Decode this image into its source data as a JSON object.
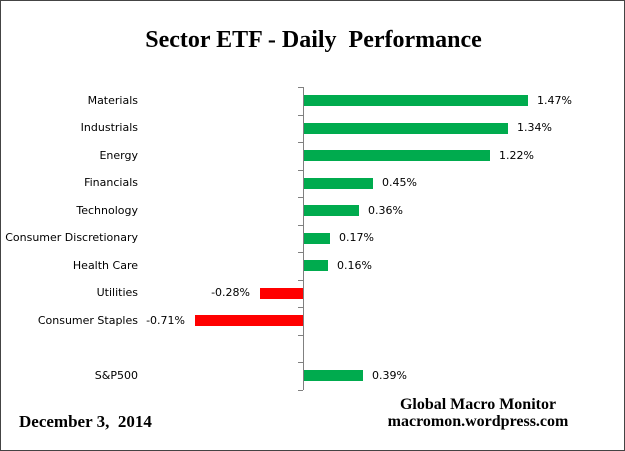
{
  "chart_data": {
    "type": "bar",
    "orientation": "horizontal",
    "title": "Sector ETF - Daily  Performance",
    "categories": [
      "Materials",
      "Industrials",
      "Energy",
      "Financials",
      "Technology",
      "Consumer Discretionary",
      "Health Care",
      "Utilities",
      "Consumer Staples",
      "",
      "S&P500"
    ],
    "values": [
      1.47,
      1.34,
      1.22,
      0.45,
      0.36,
      0.17,
      0.16,
      -0.28,
      -0.71,
      null,
      0.39
    ],
    "value_labels": [
      "1.47%",
      "1.34%",
      "1.22%",
      "0.45%",
      "0.36%",
      "0.17%",
      "0.16%",
      "-0.28%",
      "-0.71%",
      "",
      "0.39%"
    ],
    "xlim": [
      -0.8,
      1.6
    ],
    "grid": false,
    "legend": "none",
    "positive_color": "#00AB4E",
    "negative_color": "#FF0000",
    "axis_color": "#808080",
    "xlabel": "",
    "ylabel": ""
  },
  "footer": {
    "date": "December 3,  2014",
    "credit_line1": "Global Macro Monitor",
    "credit_line2": "macromon.wordpress.com"
  }
}
